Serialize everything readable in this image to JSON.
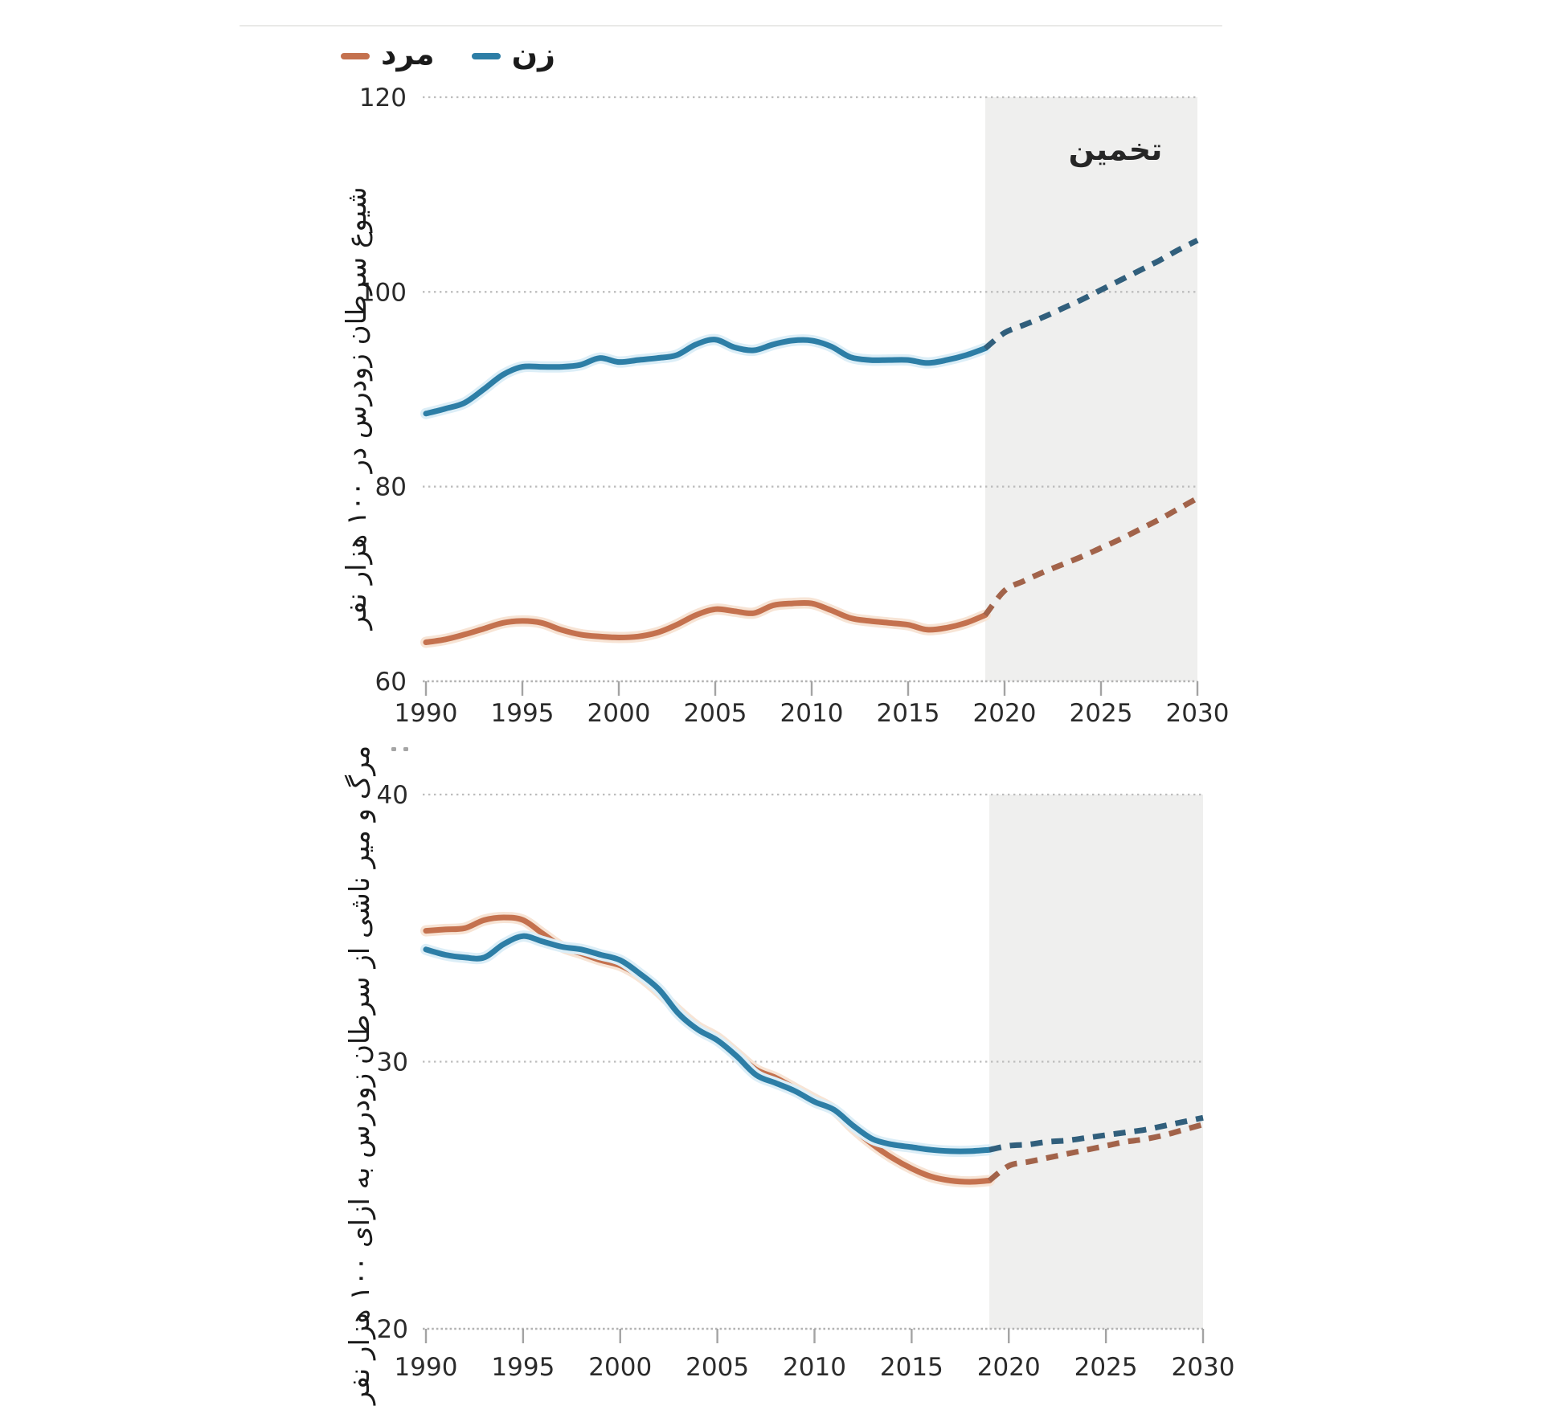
{
  "legend": {
    "position": "top-left",
    "items": [
      {
        "id": "male",
        "label": "مرد",
        "color": "#c4714e"
      },
      {
        "id": "female",
        "label": "زن",
        "color": "#2d7ea6"
      }
    ]
  },
  "colors": {
    "female_line": "#2d7ea6",
    "female_forecast": "#315f7c",
    "female_halo": "#dceef7",
    "male_line": "#c4714e",
    "male_forecast": "#a2634a",
    "male_halo": "#f7e4d5",
    "forecast_shading": "#efefee",
    "gridline": "#bdbdbd",
    "axis": "#b3b3b3",
    "tick_text": "#2b2b2b"
  },
  "chart_data": [
    {
      "type": "line",
      "title": "",
      "ylabel": "شیوع سرطان زودرس در ۱۰۰ هزار نفر",
      "xlabel": "",
      "xlim": [
        1990,
        2030
      ],
      "ylim": [
        60,
        120
      ],
      "x_ticks": [
        1990,
        1995,
        2000,
        2005,
        2010,
        2015,
        2020,
        2025,
        2030
      ],
      "y_ticks": [
        60,
        80,
        100,
        120
      ],
      "grid": "dotted-horizontal",
      "legend_position": "top",
      "forecast_start": 2019,
      "forecast_label": "تخمین",
      "forecast_shading": true,
      "x": [
        1990,
        1991,
        1992,
        1993,
        1994,
        1995,
        1996,
        1997,
        1998,
        1999,
        2000,
        2001,
        2002,
        2003,
        2004,
        2005,
        2006,
        2007,
        2008,
        2009,
        2010,
        2011,
        2012,
        2013,
        2014,
        2015,
        2016,
        2017,
        2018,
        2019,
        2020,
        2021,
        2022,
        2023,
        2024,
        2025,
        2026,
        2027,
        2028,
        2029,
        2030
      ],
      "series": [
        {
          "id": "male",
          "name": "مرد",
          "color": "#c4714e",
          "forecast_color": "#a2634a",
          "halo": "#f7e4d5",
          "values": [
            64.0,
            64.3,
            64.8,
            65.4,
            66.0,
            66.2,
            66.0,
            65.3,
            64.8,
            64.6,
            64.5,
            64.6,
            65.0,
            65.8,
            66.8,
            67.4,
            67.2,
            67.0,
            67.8,
            68.0,
            68.0,
            67.3,
            66.5,
            66.2,
            66.0,
            65.8,
            65.3,
            65.5,
            66.0,
            66.8,
            69.3,
            70.3,
            71.2,
            72.0,
            72.8,
            73.7,
            74.6,
            75.6,
            76.6,
            77.7,
            78.8
          ]
        },
        {
          "id": "female",
          "name": "زن",
          "color": "#2d7ea6",
          "forecast_color": "#315f7c",
          "halo": "#dceef7",
          "values": [
            87.5,
            88.0,
            88.6,
            90.0,
            91.5,
            92.3,
            92.3,
            92.3,
            92.5,
            93.2,
            92.8,
            93.0,
            93.2,
            93.5,
            94.6,
            95.1,
            94.3,
            94.0,
            94.6,
            95.0,
            95.0,
            94.4,
            93.3,
            93.0,
            93.0,
            93.0,
            92.7,
            93.0,
            93.5,
            94.2,
            95.8,
            96.6,
            97.4,
            98.3,
            99.2,
            100.2,
            101.2,
            102.2,
            103.2,
            104.3,
            105.3
          ]
        }
      ]
    },
    {
      "type": "line",
      "title": "",
      "ylabel": "مرگ و میر ناشی از سرطان زودرس به ازای ۱۰۰ هزار نفر",
      "xlabel": "",
      "xlim": [
        1990,
        2030
      ],
      "ylim": [
        20,
        40
      ],
      "x_ticks": [
        1990,
        1995,
        2000,
        2005,
        2010,
        2015,
        2020,
        2025,
        2030
      ],
      "y_ticks": [
        20,
        30,
        40
      ],
      "grid": "dotted-horizontal",
      "legend_position": "shared-top",
      "forecast_start": 2019,
      "forecast_label": "",
      "forecast_shading": true,
      "x": [
        1990,
        1991,
        1992,
        1993,
        1994,
        1995,
        1996,
        1997,
        1998,
        1999,
        2000,
        2001,
        2002,
        2003,
        2004,
        2005,
        2006,
        2007,
        2008,
        2009,
        2010,
        2011,
        2012,
        2013,
        2014,
        2015,
        2016,
        2017,
        2018,
        2019,
        2020,
        2021,
        2022,
        2023,
        2024,
        2025,
        2026,
        2027,
        2028,
        2029,
        2030
      ],
      "series": [
        {
          "id": "male",
          "name": "مرد",
          "color": "#c4714e",
          "forecast_color": "#a2634a",
          "halo": "#f7e4d5",
          "values": [
            34.9,
            34.95,
            35.0,
            35.3,
            35.4,
            35.3,
            34.8,
            34.3,
            34.05,
            33.8,
            33.6,
            33.2,
            32.6,
            31.9,
            31.3,
            30.9,
            30.3,
            29.7,
            29.4,
            29.0,
            28.6,
            28.2,
            27.5,
            26.9,
            26.4,
            26.0,
            25.7,
            25.55,
            25.5,
            25.55,
            26.1,
            26.25,
            26.4,
            26.55,
            26.7,
            26.85,
            27.0,
            27.1,
            27.25,
            27.45,
            27.65
          ]
        },
        {
          "id": "female",
          "name": "زن",
          "color": "#2d7ea6",
          "forecast_color": "#315f7c",
          "halo": "#dceef7",
          "values": [
            34.2,
            34.0,
            33.9,
            33.9,
            34.4,
            34.7,
            34.5,
            34.3,
            34.2,
            34.0,
            33.8,
            33.3,
            32.7,
            31.8,
            31.2,
            30.8,
            30.2,
            29.5,
            29.2,
            28.9,
            28.5,
            28.2,
            27.6,
            27.1,
            26.9,
            26.8,
            26.7,
            26.65,
            26.65,
            26.7,
            26.85,
            26.9,
            27.0,
            27.05,
            27.15,
            27.25,
            27.35,
            27.45,
            27.6,
            27.75,
            27.9
          ]
        }
      ]
    }
  ]
}
